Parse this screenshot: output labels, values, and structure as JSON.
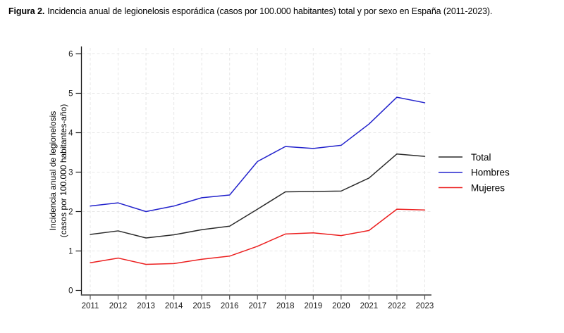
{
  "caption": {
    "label": "Figura 2.",
    "text": "Incidencia anual de legionelosis esporádica (casos por 100.000 habitantes) total y por sexo en España (2011-2023)."
  },
  "chart_data": {
    "type": "line",
    "title": "Figura 2. Incidencia anual de legionelosis esporádica (casos por 100.000 habitantes) total y por sexo en España (2011-2023).",
    "x": [
      2011,
      2012,
      2013,
      2014,
      2015,
      2016,
      2017,
      2018,
      2019,
      2020,
      2021,
      2022,
      2023
    ],
    "series": [
      {
        "name": "Total",
        "color": "#2b2b2b",
        "values": [
          1.42,
          1.51,
          1.33,
          1.41,
          1.54,
          1.63,
          2.06,
          2.5,
          2.51,
          2.52,
          2.85,
          3.46,
          3.4
        ]
      },
      {
        "name": "Hombres",
        "color": "#2222cc",
        "values": [
          2.14,
          2.22,
          2.0,
          2.14,
          2.35,
          2.42,
          3.27,
          3.65,
          3.6,
          3.68,
          4.22,
          4.9,
          4.76
        ]
      },
      {
        "name": "Mujeres",
        "color": "#ec2020",
        "values": [
          0.7,
          0.82,
          0.66,
          0.68,
          0.79,
          0.87,
          1.12,
          1.43,
          1.46,
          1.39,
          1.52,
          2.06,
          2.04
        ]
      }
    ],
    "xlabel": "",
    "ylabel_line1": "Incidencia anual de legionelosis",
    "ylabel_line2": "(casos por 100.000 habitantes-año)",
    "yticks": [
      0,
      1,
      2,
      3,
      4,
      5,
      6
    ],
    "ylim": [
      0,
      6
    ],
    "grid": "light dashed horizontal and vertical gridlines",
    "legend_position": "right",
    "legend": [
      "Total",
      "Hombres",
      "Mujeres"
    ]
  },
  "style": {
    "grid_color": "#e7e7e7",
    "y_axis_color": "#1a1a1a",
    "x_axis_color": "#565656",
    "tick_label_color": "#1a1a1a",
    "background": "#ffffff"
  }
}
